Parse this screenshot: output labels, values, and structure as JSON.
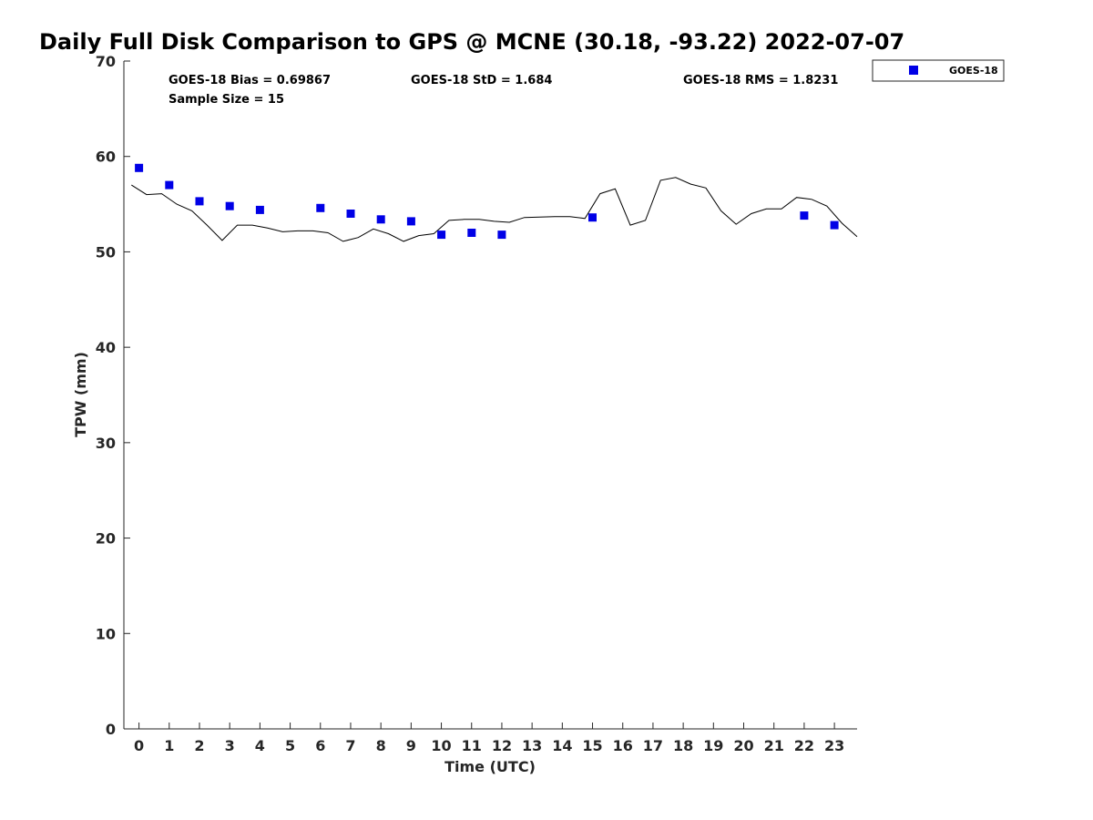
{
  "chart_data": {
    "type": "scatter",
    "title": "Daily Full Disk Comparison to GPS @ MCNE (30.18, -93.22) 2022-07-07",
    "xlabel": "Time (UTC)",
    "ylabel": "TPW (mm)",
    "xlim": [
      -0.5,
      23.75
    ],
    "ylim": [
      0,
      70
    ],
    "xticks": [
      "0",
      "1",
      "2",
      "3",
      "4",
      "5",
      "6",
      "7",
      "8",
      "9",
      "10",
      "11",
      "12",
      "13",
      "14",
      "15",
      "16",
      "17",
      "18",
      "19",
      "20",
      "21",
      "22",
      "23"
    ],
    "yticks": [
      "0",
      "10",
      "20",
      "30",
      "40",
      "50",
      "60",
      "70"
    ],
    "grid": false,
    "legend": {
      "position": "outside-top-right",
      "entries": [
        "GOES-18"
      ]
    },
    "stats": {
      "bias": "GOES-18 Bias = 0.69867",
      "std": "GOES-18 StD = 1.684",
      "rms": "GOES-18 RMS = 1.8231",
      "sample": "Sample Size = 15"
    },
    "series": [
      {
        "name": "GOES-18",
        "kind": "scatter",
        "color": "#0000e6",
        "x": [
          0,
          1,
          2,
          3,
          4,
          6,
          7,
          8,
          9,
          10,
          11,
          12,
          15,
          22,
          23
        ],
        "y": [
          58.8,
          57.0,
          55.3,
          54.8,
          54.4,
          54.6,
          54.0,
          53.4,
          53.2,
          51.8,
          52.0,
          51.8,
          53.6,
          53.8,
          52.8
        ]
      },
      {
        "kind": "line",
        "color": "#000000",
        "x": [
          -0.25,
          0.25,
          0.75,
          1.25,
          1.75,
          2.25,
          2.75,
          3.25,
          3.75,
          4.25,
          4.75,
          5.25,
          5.75,
          6.25,
          6.75,
          7.25,
          7.75,
          8.25,
          8.75,
          9.25,
          9.75,
          10.25,
          10.75,
          11.25,
          11.75,
          12.25,
          12.75,
          13.25,
          13.75,
          14.25,
          14.75,
          15.25,
          15.75,
          16.25,
          16.75,
          17.25,
          17.75,
          18.25,
          18.75,
          19.25,
          19.75,
          20.25,
          20.75,
          21.25,
          21.75,
          22.25,
          22.75,
          23.25,
          23.75
        ],
        "y": [
          57.0,
          56.0,
          56.1,
          55.0,
          54.3,
          52.8,
          51.2,
          52.8,
          52.8,
          52.5,
          52.1,
          52.2,
          52.2,
          52.0,
          51.1,
          51.5,
          52.4,
          51.9,
          51.1,
          51.7,
          51.9,
          53.3,
          53.4,
          53.4,
          53.2,
          53.1,
          53.6,
          53.65,
          53.7,
          53.7,
          53.5,
          56.1,
          56.6,
          52.8,
          53.3,
          57.5,
          57.8,
          57.1,
          56.7,
          54.3,
          52.9,
          54.0,
          54.5,
          54.5,
          55.7,
          55.5,
          54.8,
          53.0,
          51.6
        ]
      }
    ]
  }
}
